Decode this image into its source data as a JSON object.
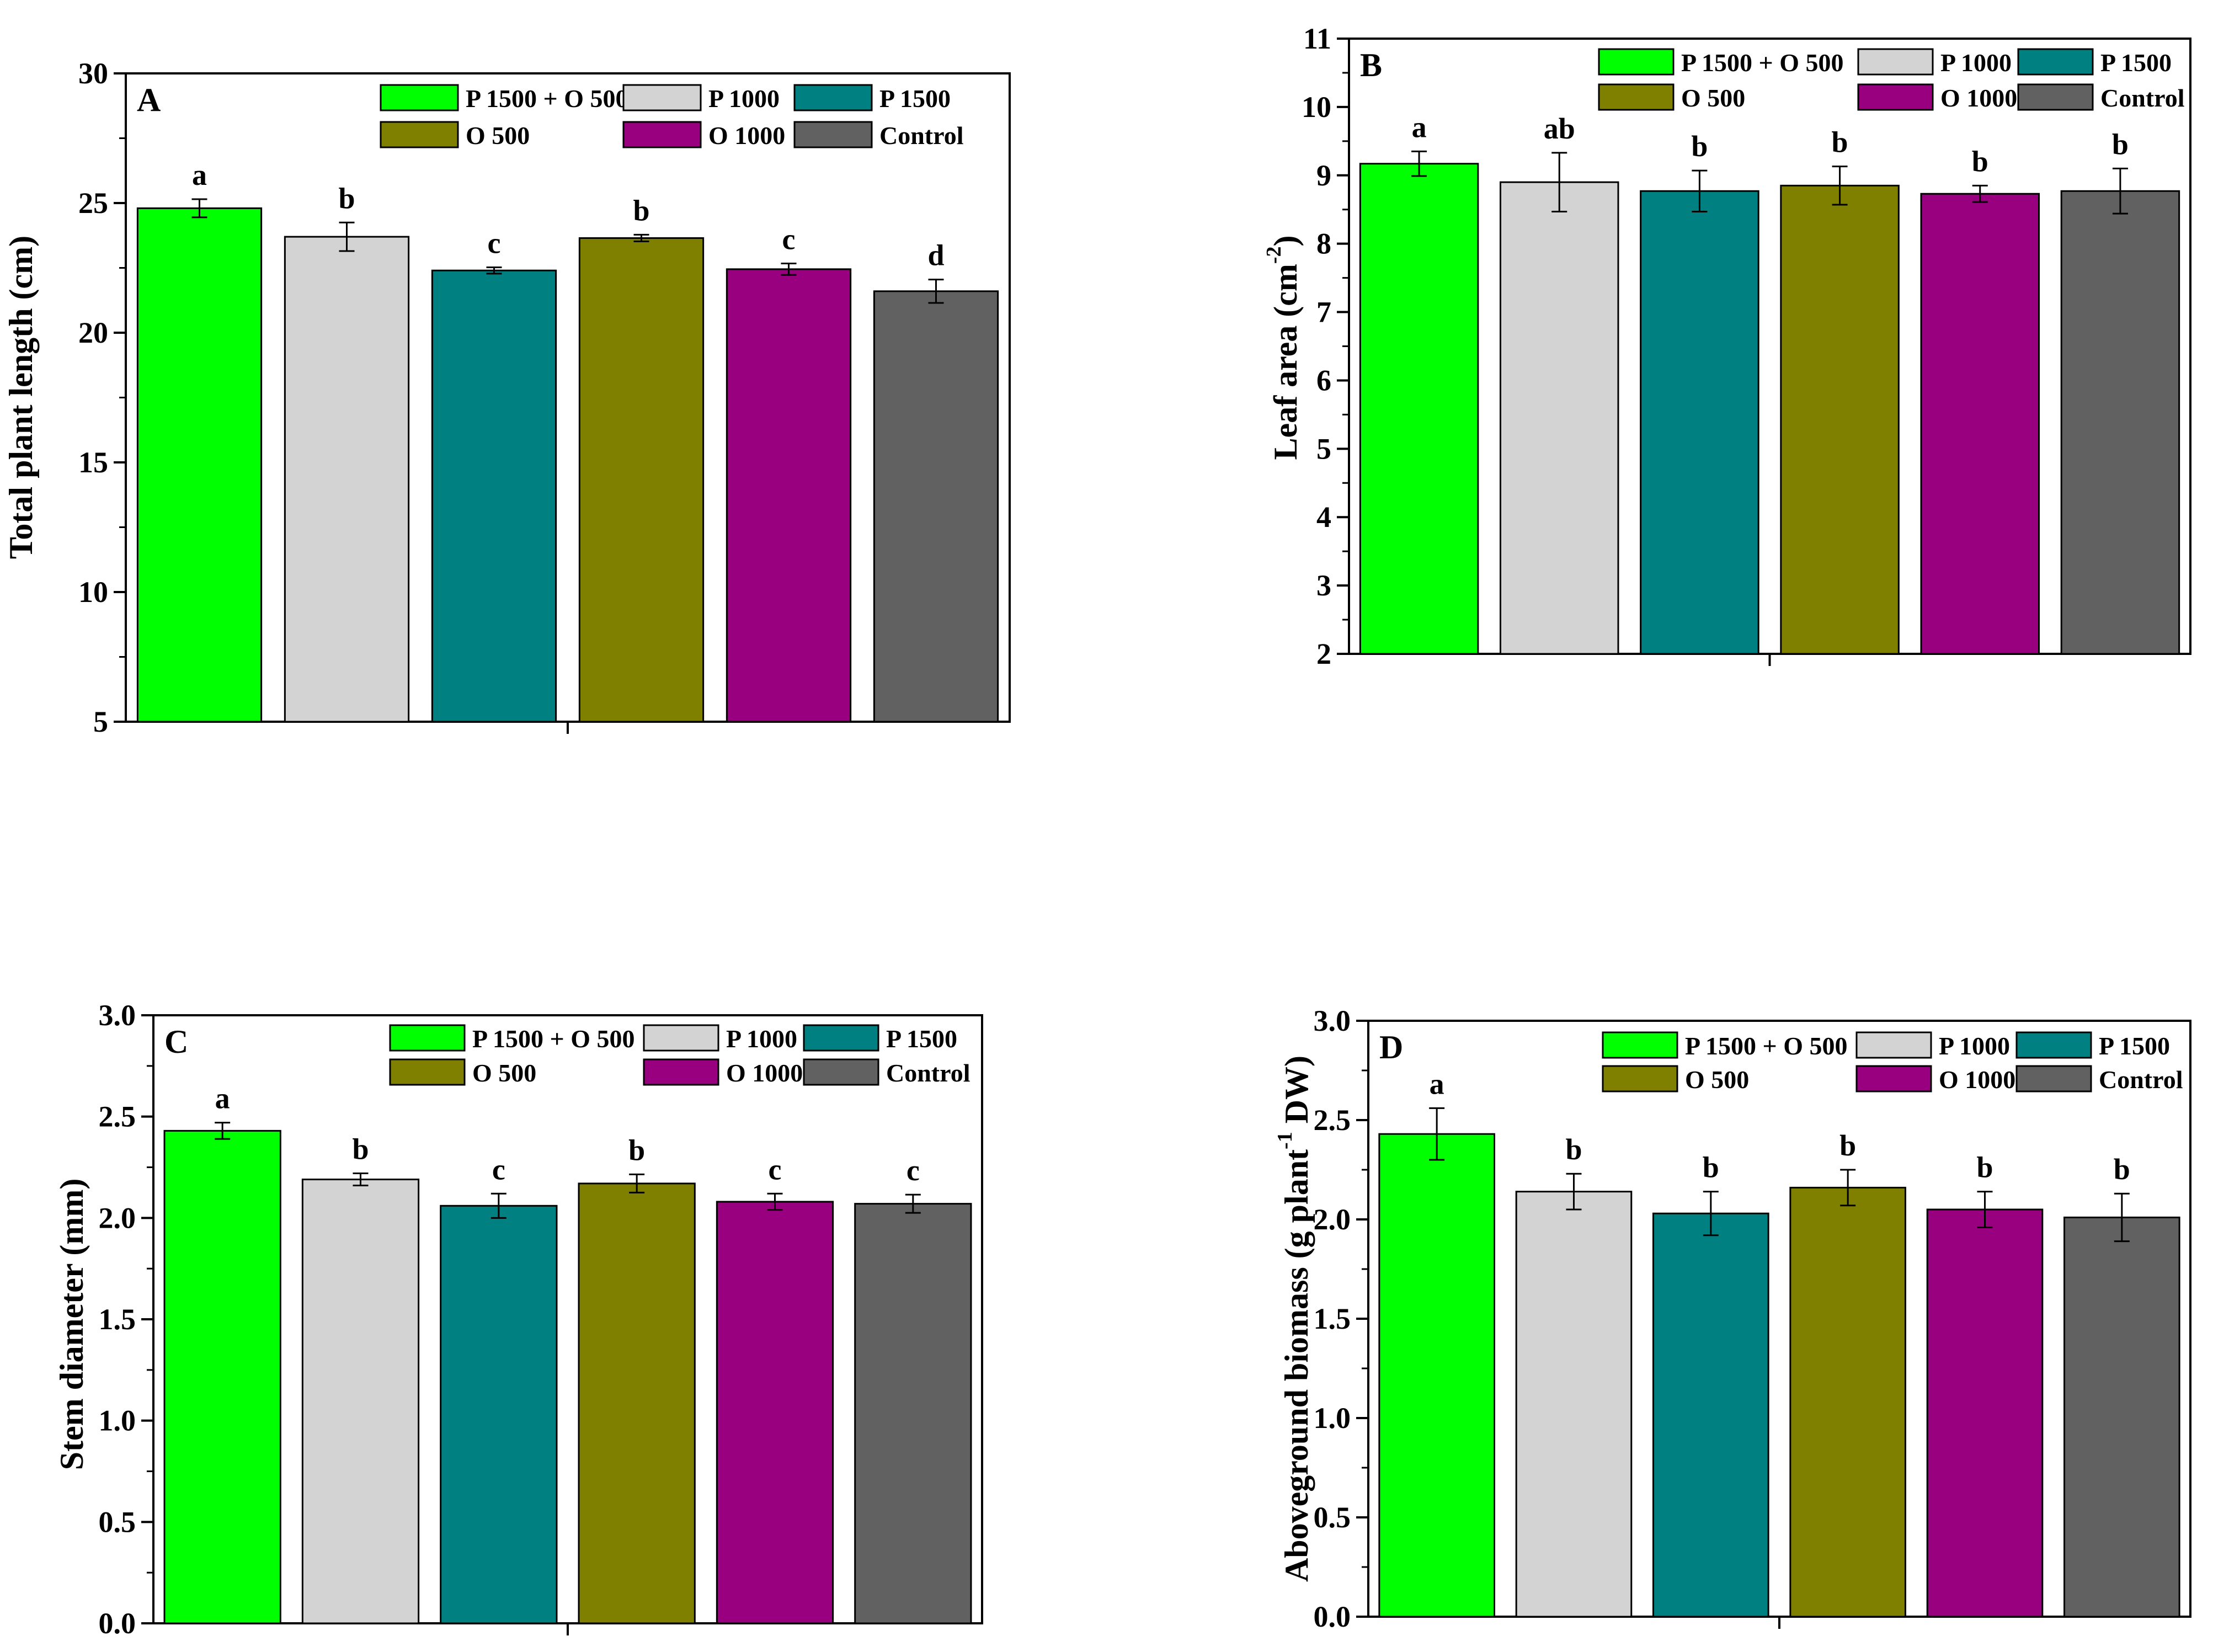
{
  "colors": {
    "P 1500 + O 500": "#00FF00",
    "P 1000": "#D3D3D3",
    "P 1500": "#008080",
    "O 500": "#808000",
    "O 1000": "#990080",
    "Control": "#616161"
  },
  "chart_data": [
    {
      "type": "bar",
      "panel": "A",
      "ylabel": "Total plant length (cm)",
      "ylabel_sup": "",
      "ylabel_after": "",
      "ylim": [
        5,
        30
      ],
      "yticks": [
        5,
        10,
        15,
        20,
        25,
        30
      ],
      "ytick_labels": [
        "5",
        "10",
        "15",
        "20",
        "25",
        "30"
      ],
      "minor": true,
      "categories": [
        "P 1500 + O 500",
        "P 1000",
        "P 1500",
        "O 500",
        "O 1000",
        "Control"
      ],
      "values": [
        24.8,
        23.7,
        22.4,
        23.65,
        22.45,
        21.6
      ],
      "errors": [
        0.35,
        0.55,
        0.12,
        0.13,
        0.22,
        0.45
      ],
      "sig": [
        "a",
        "b",
        "c",
        "b",
        "c",
        "d"
      ],
      "legend_rows": [
        [
          "P 1500 + O 500",
          "P 1000",
          "P 1500"
        ],
        [
          "O 500",
          "O 1000",
          "Control"
        ]
      ]
    },
    {
      "type": "bar",
      "panel": "B",
      "ylabel": "Leaf area (cm",
      "ylabel_sup": "-2",
      "ylabel_after": ")",
      "ylim": [
        2,
        11
      ],
      "yticks": [
        2,
        3,
        4,
        5,
        6,
        7,
        8,
        9,
        10,
        11
      ],
      "ytick_labels": [
        "2",
        "3",
        "4",
        "5",
        "6",
        "7",
        "8",
        "9",
        "10",
        "11"
      ],
      "minor": true,
      "categories": [
        "P 1500 + O 500",
        "P 1000",
        "P 1500",
        "O 500",
        "O 1000",
        "Control"
      ],
      "values": [
        9.17,
        8.9,
        8.77,
        8.85,
        8.73,
        8.77
      ],
      "errors": [
        0.18,
        0.43,
        0.3,
        0.28,
        0.12,
        0.33
      ],
      "sig": [
        "a",
        "ab",
        "b",
        "b",
        "b",
        "b"
      ],
      "legend_rows": [
        [
          "P 1500 + O 500",
          "P 1000",
          "P 1500"
        ],
        [
          "O 500",
          "O 1000",
          "Control"
        ]
      ]
    },
    {
      "type": "bar",
      "panel": "C",
      "ylabel": "Stem diameter (mm)",
      "ylabel_sup": "",
      "ylabel_after": "",
      "ylim": [
        0,
        3
      ],
      "yticks": [
        0,
        0.5,
        1,
        1.5,
        2,
        2.5,
        3
      ],
      "ytick_labels": [
        "0.0",
        "0.5",
        "1.0",
        "1.5",
        "2.0",
        "2.5",
        "3.0"
      ],
      "minor": true,
      "categories": [
        "P 1500 + O 500",
        "P 1000",
        "P 1500",
        "O 500",
        "O 1000",
        "Control"
      ],
      "values": [
        2.43,
        2.19,
        2.06,
        2.17,
        2.08,
        2.07
      ],
      "errors": [
        0.04,
        0.03,
        0.06,
        0.045,
        0.04,
        0.045
      ],
      "sig": [
        "a",
        "b",
        "c",
        "b",
        "c",
        "c"
      ],
      "legend_rows": [
        [
          "P 1500 + O 500",
          "P 1000",
          "P 1500"
        ],
        [
          "O 500",
          "O 1000",
          "Control"
        ]
      ]
    },
    {
      "type": "bar",
      "panel": "D",
      "ylabel": "Aboveground biomass (g plant",
      "ylabel_sup": "-1",
      "ylabel_after": " DW)",
      "ylim": [
        0,
        3
      ],
      "yticks": [
        0,
        0.5,
        1,
        1.5,
        2,
        2.5,
        3
      ],
      "ytick_labels": [
        "0.0",
        "0.5",
        "1.0",
        "1.5",
        "2.0",
        "2.5",
        "3.0"
      ],
      "minor": true,
      "categories": [
        "P 1500 + O 500",
        "P 1000",
        "P 1500",
        "O 500",
        "O 1000",
        "Control"
      ],
      "values": [
        2.43,
        2.14,
        2.03,
        2.16,
        2.05,
        2.01
      ],
      "errors": [
        0.13,
        0.09,
        0.11,
        0.09,
        0.09,
        0.12
      ],
      "sig": [
        "a",
        "b",
        "b",
        "b",
        "b",
        "b"
      ],
      "legend_rows": [
        [
          "P 1500 + O 500",
          "P 1000",
          "P 1500"
        ],
        [
          "O 500",
          "O 1000",
          "Control"
        ]
      ]
    }
  ]
}
